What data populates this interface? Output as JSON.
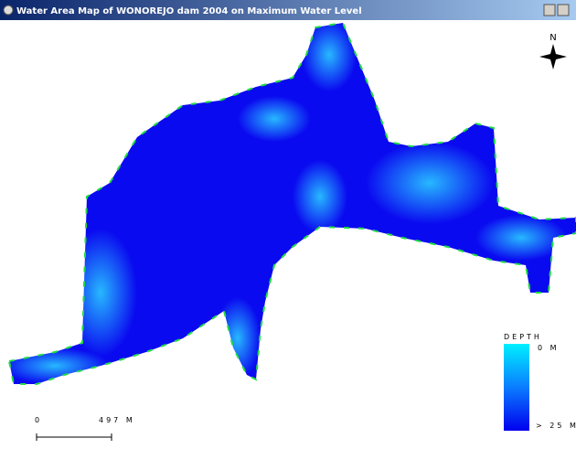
{
  "window": {
    "title": "Water Area Map of WONOREJO dam 2004 on Maximum Water Level"
  },
  "map": {
    "north_label": "N"
  },
  "legend": {
    "title": "DEPTH",
    "min_label": "0 M",
    "max_label": "> 25 M"
  },
  "scale_bar": {
    "start_label": "0",
    "end_label": "497 M"
  }
}
